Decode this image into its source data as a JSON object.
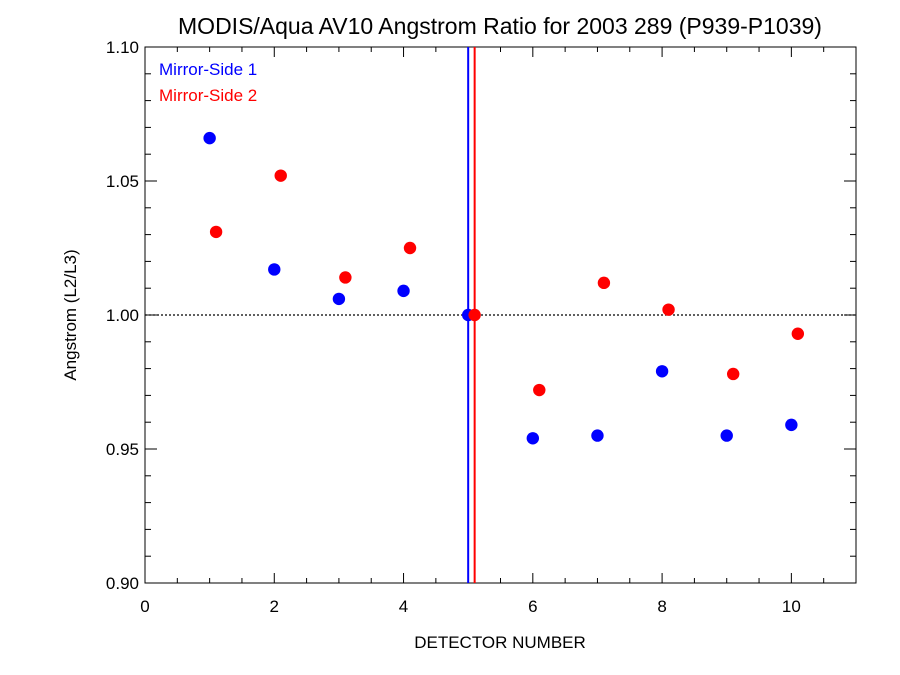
{
  "chart_data": {
    "type": "scatter",
    "title": "MODIS/Aqua AV10 Angstrom Ratio for 2003 289 (P939-P1039)",
    "xlabel": "DETECTOR NUMBER",
    "ylabel": "Angstrom (L2/L3)",
    "xlim": [
      0,
      11
    ],
    "ylim": [
      0.9,
      1.1
    ],
    "x_ticks": [
      0,
      2,
      4,
      6,
      8,
      10
    ],
    "x_tick_labels": [
      "0",
      "2",
      "4",
      "6",
      "8",
      "10"
    ],
    "y_ticks": [
      0.9,
      0.95,
      1.0,
      1.05,
      1.1
    ],
    "y_tick_labels": [
      "0.90",
      "0.95",
      "1.00",
      "1.05",
      "1.10"
    ],
    "reference_line_y": 1.0,
    "legend_position": "top-left",
    "series": [
      {
        "name": "Mirror-Side 1",
        "color": "#0000ff",
        "x": [
          1,
          2,
          3,
          4,
          5,
          6,
          7,
          8,
          9,
          10
        ],
        "y": [
          1.066,
          1.017,
          1.006,
          1.009,
          1.0,
          0.954,
          0.955,
          0.979,
          0.955,
          0.959
        ]
      },
      {
        "name": "Mirror-Side 2",
        "color": "#ff0000",
        "x": [
          1.1,
          2.1,
          3.1,
          4.1,
          5.1,
          6.1,
          7.1,
          8.1,
          9.1,
          10.1
        ],
        "y": [
          1.031,
          1.052,
          1.014,
          1.025,
          1.0,
          0.972,
          1.012,
          1.002,
          0.978,
          0.993
        ]
      }
    ],
    "vertical_lines": [
      {
        "x": 5.0,
        "color": "#0000ff"
      },
      {
        "x": 5.1,
        "color": "#ff0000"
      }
    ]
  }
}
